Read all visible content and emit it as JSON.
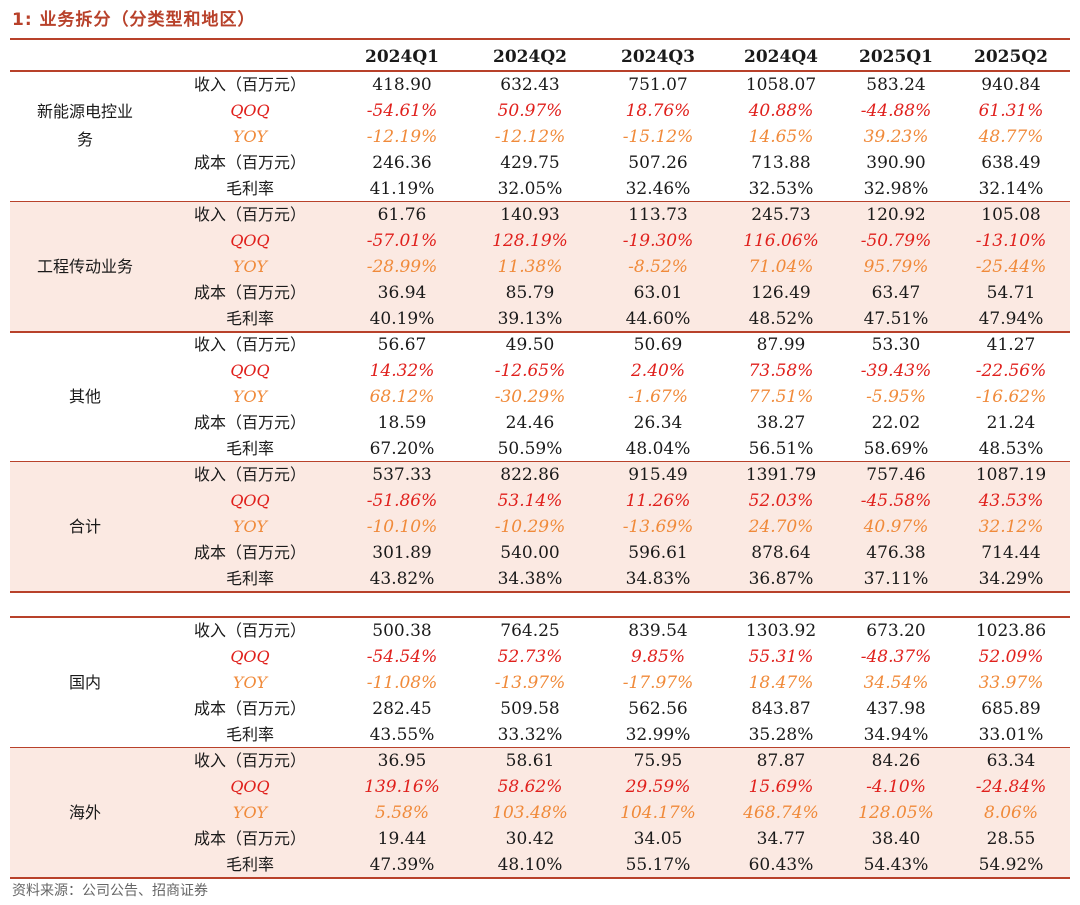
{
  "title": "1:  业务拆分（分类型和地区）",
  "columns": [
    "2024Q1",
    "2024Q2",
    "2024Q3",
    "2024Q4",
    "2025Q1",
    "2025Q2"
  ],
  "row_labels": {
    "revenue": "收入（百万元）",
    "qoq": "QOQ",
    "yoy": "YOY",
    "cost": "成本（百万元）",
    "margin": "毛利率"
  },
  "groups": [
    {
      "name": "新能源电控业务",
      "shaded": false,
      "rows": {
        "revenue": [
          "418.90",
          "632.43",
          "751.07",
          "1058.07",
          "583.24",
          "940.84"
        ],
        "qoq": [
          "-54.61%",
          "50.97%",
          "18.76%",
          "40.88%",
          "-44.88%",
          "61.31%"
        ],
        "yoy": [
          "-12.19%",
          "-12.12%",
          "-15.12%",
          "14.65%",
          "39.23%",
          "48.77%"
        ],
        "cost": [
          "246.36",
          "429.75",
          "507.26",
          "713.88",
          "390.90",
          "638.49"
        ],
        "margin": [
          "41.19%",
          "32.05%",
          "32.46%",
          "32.53%",
          "32.98%",
          "32.14%"
        ]
      }
    },
    {
      "name": "工程传动业务",
      "shaded": true,
      "rows": {
        "revenue": [
          "61.76",
          "140.93",
          "113.73",
          "245.73",
          "120.92",
          "105.08"
        ],
        "qoq": [
          "-57.01%",
          "128.19%",
          "-19.30%",
          "116.06%",
          "-50.79%",
          "-13.10%"
        ],
        "yoy": [
          "-28.99%",
          "11.38%",
          "-8.52%",
          "71.04%",
          "95.79%",
          "-25.44%"
        ],
        "cost": [
          "36.94",
          "85.79",
          "63.01",
          "126.49",
          "63.47",
          "54.71"
        ],
        "margin": [
          "40.19%",
          "39.13%",
          "44.60%",
          "48.52%",
          "47.51%",
          "47.94%"
        ]
      }
    },
    {
      "name": "其他",
      "shaded": false,
      "rows": {
        "revenue": [
          "56.67",
          "49.50",
          "50.69",
          "87.99",
          "53.30",
          "41.27"
        ],
        "qoq": [
          "14.32%",
          "-12.65%",
          "2.40%",
          "73.58%",
          "-39.43%",
          "-22.56%"
        ],
        "yoy": [
          "68.12%",
          "-30.29%",
          "-1.67%",
          "77.51%",
          "-5.95%",
          "-16.62%"
        ],
        "cost": [
          "18.59",
          "24.46",
          "26.34",
          "38.27",
          "22.02",
          "21.24"
        ],
        "margin": [
          "67.20%",
          "50.59%",
          "48.04%",
          "56.51%",
          "58.69%",
          "48.53%"
        ]
      }
    },
    {
      "name": "合计",
      "shaded": true,
      "rows": {
        "revenue": [
          "537.33",
          "822.86",
          "915.49",
          "1391.79",
          "757.46",
          "1087.19"
        ],
        "qoq": [
          "-51.86%",
          "53.14%",
          "11.26%",
          "52.03%",
          "-45.58%",
          "43.53%"
        ],
        "yoy": [
          "-10.10%",
          "-10.29%",
          "-13.69%",
          "24.70%",
          "40.97%",
          "32.12%"
        ],
        "cost": [
          "301.89",
          "540.00",
          "596.61",
          "878.64",
          "476.38",
          "714.44"
        ],
        "margin": [
          "43.82%",
          "34.38%",
          "34.83%",
          "36.87%",
          "37.11%",
          "34.29%"
        ]
      }
    },
    {
      "name": "国内",
      "shaded": false,
      "rows": {
        "revenue": [
          "500.38",
          "764.25",
          "839.54",
          "1303.92",
          "673.20",
          "1023.86"
        ],
        "qoq": [
          "-54.54%",
          "52.73%",
          "9.85%",
          "55.31%",
          "-48.37%",
          "52.09%"
        ],
        "yoy": [
          "-11.08%",
          "-13.97%",
          "-17.97%",
          "18.47%",
          "34.54%",
          "33.97%"
        ],
        "cost": [
          "282.45",
          "509.58",
          "562.56",
          "843.87",
          "437.98",
          "685.89"
        ],
        "margin": [
          "43.55%",
          "33.32%",
          "32.99%",
          "35.28%",
          "34.94%",
          "33.01%"
        ]
      }
    },
    {
      "name": "海外",
      "shaded": true,
      "rows": {
        "revenue": [
          "36.95",
          "58.61",
          "75.95",
          "87.87",
          "84.26",
          "63.34"
        ],
        "qoq": [
          "139.16%",
          "58.62%",
          "29.59%",
          "15.69%",
          "-4.10%",
          "-24.84%"
        ],
        "yoy": [
          "5.58%",
          "103.48%",
          "104.17%",
          "468.74%",
          "128.05%",
          "8.06%"
        ],
        "cost": [
          "19.44",
          "30.42",
          "34.05",
          "34.77",
          "38.40",
          "28.55"
        ],
        "margin": [
          "47.39%",
          "48.10%",
          "55.17%",
          "60.43%",
          "54.43%",
          "54.92%"
        ]
      }
    }
  ],
  "source": "资料来源：公司公告、招商证券"
}
